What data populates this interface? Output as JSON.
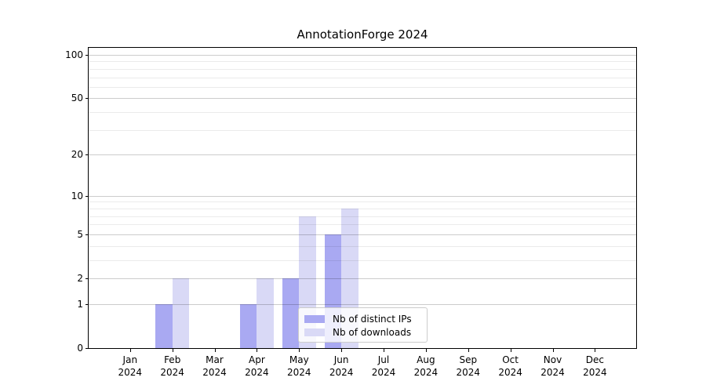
{
  "figure": {
    "background": "#ffffff"
  },
  "chart_data": {
    "type": "bar",
    "title": "AnnotationForge 2024",
    "categories": [
      "Jan",
      "Feb",
      "Mar",
      "Apr",
      "May",
      "Jun",
      "Jul",
      "Aug",
      "Sep",
      "Oct",
      "Nov",
      "Dec"
    ],
    "year_label": "2024",
    "series": [
      {
        "name": "Nb of distinct IPs",
        "color": "#a9a9f2",
        "values": [
          0,
          1,
          0,
          1,
          2,
          5,
          0,
          0,
          0,
          0,
          0,
          0
        ]
      },
      {
        "name": "Nb of downloads",
        "color": "#d9d9f6",
        "values": [
          0,
          2,
          0,
          2,
          7,
          8,
          0,
          0,
          0,
          0,
          0,
          0
        ]
      }
    ],
    "xlabel": "",
    "ylabel": "",
    "y_scale": "log1p",
    "y_ticks": [
      0,
      1,
      2,
      5,
      10,
      20,
      50,
      100
    ],
    "y_minor_gridlines": [
      3,
      4,
      6,
      7,
      8,
      9,
      30,
      40,
      60,
      70,
      80,
      90
    ],
    "ylim": [
      0,
      110
    ],
    "grid": "horizontal",
    "legend_position": "inside-bottom-center"
  }
}
